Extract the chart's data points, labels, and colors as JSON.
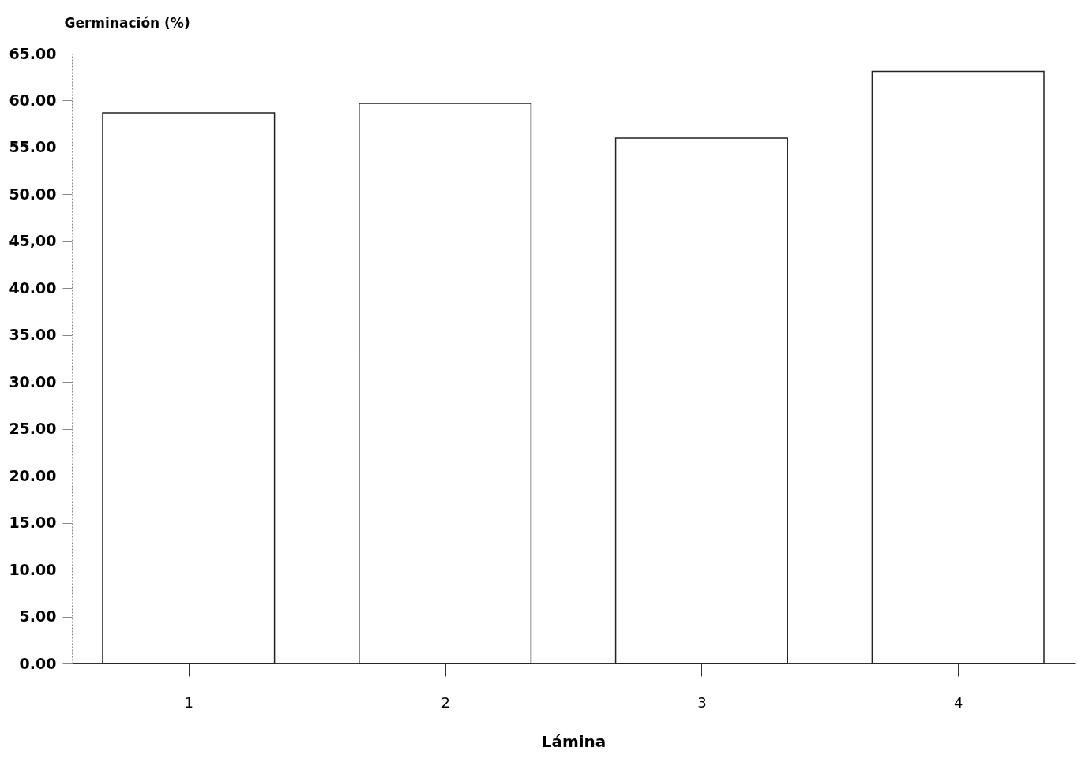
{
  "chart_data": {
    "type": "bar",
    "xlabel": "Lámina",
    "ylabel": "Germinación (%)",
    "categories": [
      "1",
      "2",
      "3",
      "4"
    ],
    "values": [
      58.7,
      59.7,
      56.0,
      63.1
    ],
    "color": "#ffffff",
    "ylim": [
      0,
      65
    ],
    "yticks": [
      {
        "value": 0,
        "label": "0.00"
      },
      {
        "value": 5,
        "label": "5.00"
      },
      {
        "value": 10,
        "label": "10.00"
      },
      {
        "value": 15,
        "label": "15.00"
      },
      {
        "value": 20,
        "label": "20.00"
      },
      {
        "value": 25,
        "label": "25.00"
      },
      {
        "value": 30,
        "label": "30.00"
      },
      {
        "value": 35,
        "label": "35.00"
      },
      {
        "value": 40,
        "label": "40.00"
      },
      {
        "value": 45,
        "label": "45,00"
      },
      {
        "value": 50,
        "label": "50.00"
      },
      {
        "value": 55,
        "label": "55.00"
      },
      {
        "value": 60,
        "label": "60.00"
      },
      {
        "value": 65,
        "label": "65.00"
      }
    ],
    "grid": false
  }
}
